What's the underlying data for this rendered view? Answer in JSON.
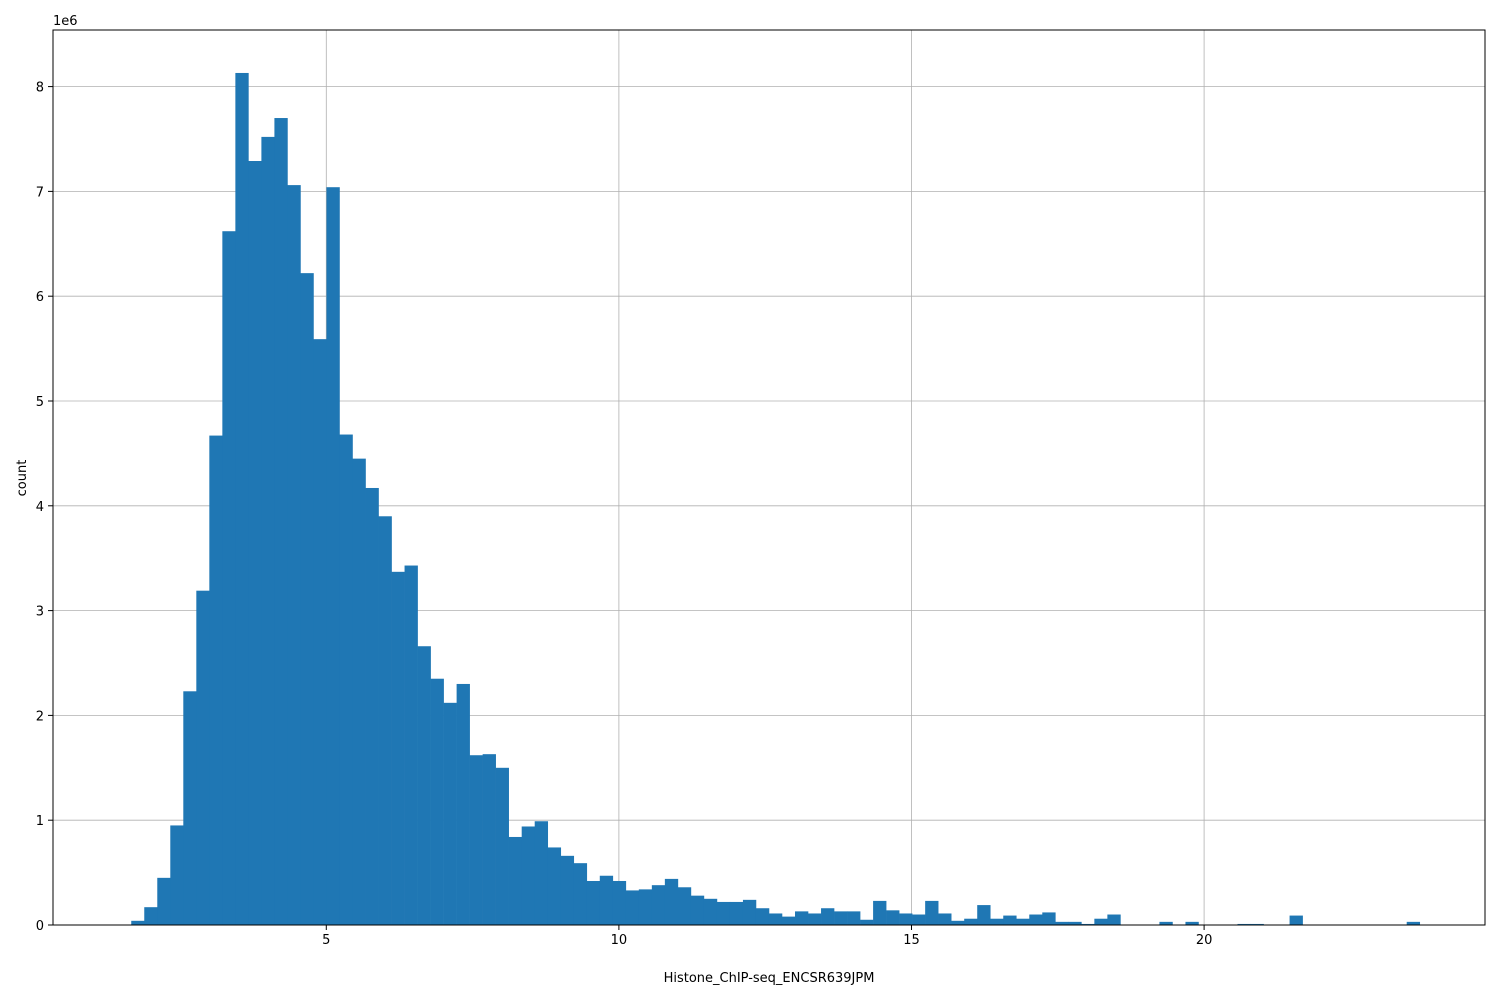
{
  "chart_data": {
    "type": "bar",
    "subtype": "histogram",
    "title": "",
    "xlabel": "Histone_ChIP-seq_ENCSR639JPM",
    "ylabel": "count",
    "y_offset_text": "1e6",
    "xlim": [
      0.33,
      24.8
    ],
    "ylim": [
      0,
      8540000
    ],
    "grid": true,
    "bar_color": "#1f77b4",
    "x_ticks": [
      5,
      10,
      15,
      20
    ],
    "x_tick_labels": [
      "5",
      "10",
      "15",
      "20"
    ],
    "y_ticks": [
      0,
      1000000,
      2000000,
      3000000,
      4000000,
      5000000,
      6000000,
      7000000,
      8000000
    ],
    "y_tick_labels": [
      "0",
      "1",
      "2",
      "3",
      "4",
      "5",
      "6",
      "7",
      "8"
    ],
    "bin_start": 1.667,
    "bin_width": 0.2224,
    "counts": [
      40000,
      170000,
      450000,
      950000,
      2230000,
      3190000,
      4670000,
      6620000,
      8130000,
      7290000,
      7520000,
      7700000,
      7060000,
      6220000,
      5590000,
      7040000,
      4680000,
      4450000,
      4170000,
      3900000,
      3370000,
      3430000,
      2660000,
      2350000,
      2120000,
      2300000,
      1620000,
      1630000,
      1500000,
      840000,
      940000,
      990000,
      740000,
      660000,
      590000,
      420000,
      470000,
      420000,
      330000,
      340000,
      380000,
      440000,
      360000,
      280000,
      250000,
      220000,
      220000,
      240000,
      160000,
      110000,
      80000,
      130000,
      110000,
      160000,
      130000,
      130000,
      50000,
      230000,
      140000,
      110000,
      100000,
      230000,
      110000,
      40000,
      60000,
      190000,
      60000,
      90000,
      60000,
      100000,
      120000,
      30000,
      30000,
      10000,
      60000,
      100000,
      0,
      0,
      0,
      30000,
      0,
      30000,
      0,
      0,
      0,
      10000,
      10000,
      0,
      0,
      90000,
      0,
      0,
      0,
      0,
      0,
      0,
      0,
      0,
      30000
    ]
  }
}
